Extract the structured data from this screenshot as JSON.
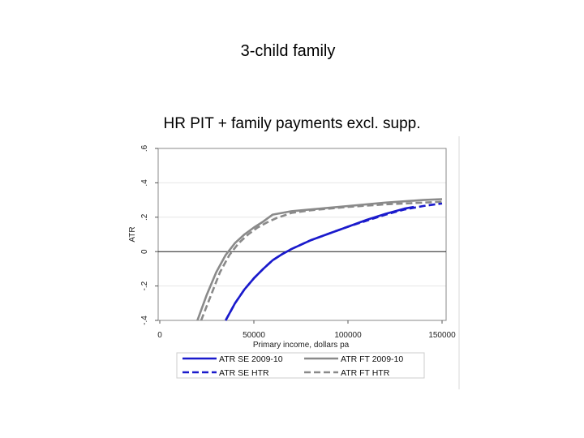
{
  "slide": {
    "title": "3-child family"
  },
  "chart_data": {
    "type": "line",
    "title": "HR PIT + family payments excl. supp.",
    "xlabel": "Primary income, dollars pa",
    "ylabel": "ATR",
    "xlim": [
      0,
      150000
    ],
    "ylim": [
      -0.4,
      0.6
    ],
    "xticks": [
      0,
      50000,
      100000,
      150000
    ],
    "xtick_labels": [
      "0",
      "50000",
      "100000",
      "150000"
    ],
    "yticks": [
      -0.4,
      -0.2,
      0,
      0.2,
      0.4,
      0.6
    ],
    "ytick_labels": [
      "-.4",
      "-.2",
      "0",
      ".2",
      ".4",
      ".6"
    ],
    "grid": true,
    "zero_line": true,
    "legend_position": "bottom",
    "series": [
      {
        "name": "ATR SE 2009-10",
        "color": "#1a1acc",
        "dash": "solid",
        "points": [
          [
            35000,
            -0.4
          ],
          [
            40000,
            -0.3
          ],
          [
            45000,
            -0.22
          ],
          [
            50000,
            -0.155
          ],
          [
            55000,
            -0.1
          ],
          [
            60000,
            -0.05
          ],
          [
            65000,
            -0.015
          ],
          [
            70000,
            0.015
          ],
          [
            80000,
            0.065
          ],
          [
            90000,
            0.105
          ],
          [
            100000,
            0.145
          ],
          [
            110000,
            0.185
          ],
          [
            120000,
            0.22
          ],
          [
            130000,
            0.25
          ],
          [
            135000,
            0.26
          ]
        ]
      },
      {
        "name": "ATR SE HTR",
        "color": "#1a1acc",
        "dash": "dashed",
        "points": [
          [
            35000,
            -0.4
          ],
          [
            40000,
            -0.3
          ],
          [
            45000,
            -0.22
          ],
          [
            50000,
            -0.155
          ],
          [
            55000,
            -0.1
          ],
          [
            60000,
            -0.05
          ],
          [
            65000,
            -0.015
          ],
          [
            70000,
            0.015
          ],
          [
            80000,
            0.065
          ],
          [
            90000,
            0.105
          ],
          [
            100000,
            0.145
          ],
          [
            110000,
            0.18
          ],
          [
            120000,
            0.215
          ],
          [
            130000,
            0.245
          ],
          [
            140000,
            0.265
          ],
          [
            150000,
            0.28
          ]
        ]
      },
      {
        "name": "ATR FT 2009-10",
        "color": "#8a8a8a",
        "dash": "solid",
        "points": [
          [
            20000,
            -0.4
          ],
          [
            25000,
            -0.25
          ],
          [
            30000,
            -0.12
          ],
          [
            35000,
            -0.02
          ],
          [
            40000,
            0.05
          ],
          [
            45000,
            0.1
          ],
          [
            50000,
            0.14
          ],
          [
            55000,
            0.175
          ],
          [
            60000,
            0.215
          ],
          [
            70000,
            0.235
          ],
          [
            80000,
            0.245
          ],
          [
            100000,
            0.265
          ],
          [
            120000,
            0.285
          ],
          [
            140000,
            0.3
          ],
          [
            150000,
            0.305
          ]
        ]
      },
      {
        "name": "ATR FT HTR",
        "color": "#8a8a8a",
        "dash": "dashed",
        "points": [
          [
            22000,
            -0.4
          ],
          [
            27000,
            -0.26
          ],
          [
            32000,
            -0.12
          ],
          [
            37000,
            -0.02
          ],
          [
            42000,
            0.05
          ],
          [
            47000,
            0.1
          ],
          [
            52000,
            0.14
          ],
          [
            57000,
            0.17
          ],
          [
            62000,
            0.195
          ],
          [
            70000,
            0.225
          ],
          [
            80000,
            0.24
          ],
          [
            100000,
            0.26
          ],
          [
            120000,
            0.275
          ],
          [
            140000,
            0.285
          ],
          [
            150000,
            0.29
          ]
        ]
      }
    ]
  }
}
